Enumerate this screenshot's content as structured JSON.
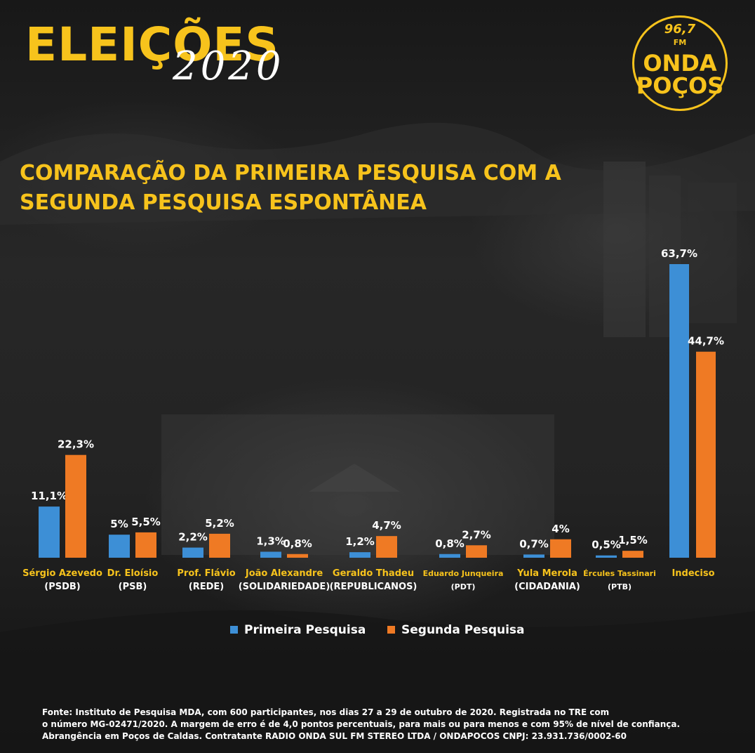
{
  "header": {
    "title": "ELEIÇÕES",
    "year": "2020"
  },
  "logo": {
    "frequency": "96,7",
    "band": "FM",
    "line1": "ONDA",
    "line2": "POÇOS"
  },
  "colors": {
    "accent": "#f7c31c",
    "series1": "#3d8fd6",
    "series2": "#ef7a24"
  },
  "chart_data": {
    "type": "bar",
    "title_lines": [
      "COMPARAÇÃO DA PRIMEIRA PESQUISA COM A",
      "SEGUNDA PESQUISA ESPONTÂNEA"
    ],
    "categories": [
      {
        "name": "Sérgio Azevedo",
        "party": "(PSDB)"
      },
      {
        "name": "Dr. Eloísio",
        "party": "(PSB)"
      },
      {
        "name": "Prof. Flávio",
        "party": "(REDE)"
      },
      {
        "name": "João Alexandre",
        "party": "(SOLIDARIEDADE)"
      },
      {
        "name": "Geraldo Thadeu",
        "party": "(REPUBLICANOS)"
      },
      {
        "name": "Eduardo Junqueira",
        "party": "(PDT)"
      },
      {
        "name": "Yula Merola",
        "party": "(CIDADANIA)"
      },
      {
        "name": "Ércules Tassinari",
        "party": "(PTB)"
      },
      {
        "name": "Indeciso",
        "party": ""
      }
    ],
    "series": [
      {
        "name": "Primeira Pesquisa",
        "values": [
          11.1,
          5,
          2.2,
          1.3,
          1.2,
          0.8,
          0.7,
          0.5,
          63.7
        ],
        "labels": [
          "11,1%",
          "5%",
          "2,2%",
          "1,3%",
          "1,2%",
          "0,8%",
          "0,7%",
          "0,5%",
          "63,7%"
        ]
      },
      {
        "name": "Segunda Pesquisa",
        "values": [
          22.3,
          5.5,
          5.2,
          0.8,
          4.7,
          2.7,
          4,
          1.5,
          44.7
        ],
        "labels": [
          "22,3%",
          "5,5%",
          "5,2%",
          "0,8%",
          "4,7%",
          "2,7%",
          "4%",
          "1,5%",
          "44,7%"
        ]
      }
    ],
    "ylim": [
      0,
      63.7
    ],
    "legend_position": "bottom-center"
  },
  "footer": {
    "line1": "Fonte: Instituto de Pesquisa MDA, com 600 participantes, nos dias 27 a 29 de outubro de 2020. Registrada no TRE com",
    "line2": "o número MG-02471/2020. A margem de erro é de 4,0 pontos percentuais, para mais ou para menos e com 95% de nível de confiança.",
    "line3": "Abrangência em Poços de Caldas. Contratante RADIO ONDA SUL FM STEREO LTDA / ONDAPOCOS CNPJ: 23.931.736/0002-60"
  }
}
